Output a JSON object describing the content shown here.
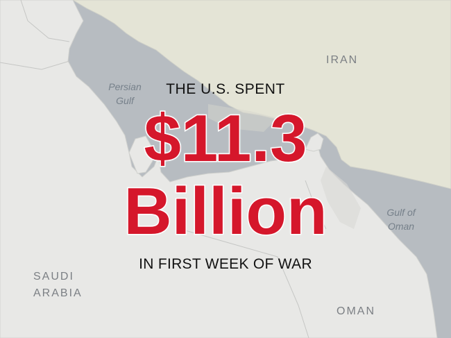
{
  "headline": {
    "line1": "THE U.S. SPENT",
    "amount": "$11.3",
    "unit": "Billion",
    "line3": "IN FIRST WEEK OF WAR"
  },
  "map_labels": {
    "iran": "IRAN",
    "saudi_arabia_line1": "SAUDI",
    "saudi_arabia_line2": "ARABIA",
    "oman": "OMAN",
    "persian_gulf_line1": "Persian",
    "persian_gulf_line2": "Gulf",
    "gulf_of_oman_line1": "Gulf of",
    "gulf_of_oman_line2": "Oman"
  },
  "colors": {
    "water": "#b7bcc1",
    "iran_land": "#e4e4d6",
    "arabia_land": "#e8e8e6",
    "highlight_red": "#d5172b",
    "text_dark": "#111111"
  }
}
